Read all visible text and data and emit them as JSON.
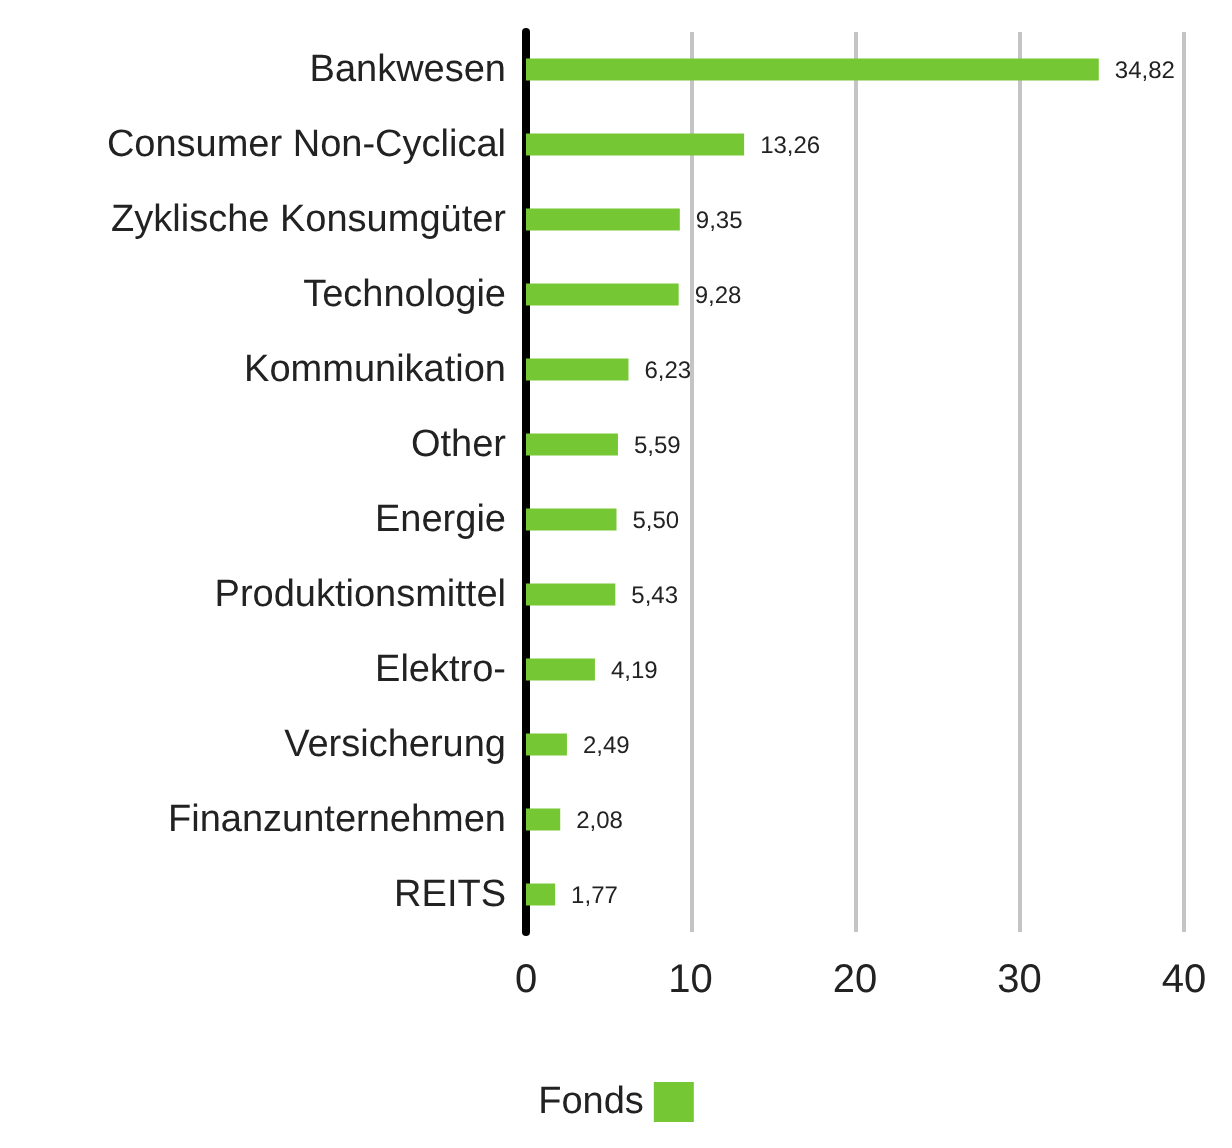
{
  "chart_data": {
    "type": "bar",
    "orientation": "horizontal",
    "categories": [
      "Bankwesen",
      "Consumer Non-Cyclical",
      "Zyklische Konsumgüter",
      "Technologie",
      "Kommunikation",
      "Other",
      "Energie",
      "Produktionsmittel",
      "Elektro-",
      "Versicherung",
      "Finanzunternehmen",
      "REITS"
    ],
    "series": [
      {
        "name": "Fonds",
        "color": "#76c734",
        "values": [
          34.82,
          13.26,
          9.35,
          9.28,
          6.23,
          5.59,
          5.5,
          5.43,
          4.19,
          2.49,
          2.08,
          1.77
        ],
        "value_labels": [
          "34,82",
          "13,26",
          "9,35",
          "9,28",
          "6,23",
          "5,59",
          "5,50",
          "5,43",
          "4,19",
          "2,49",
          "2,08",
          "1,77"
        ]
      }
    ],
    "xlim": [
      0,
      40
    ],
    "xticks": [
      0,
      10,
      20,
      30,
      40
    ],
    "grid": "x",
    "legend": "bottom"
  }
}
